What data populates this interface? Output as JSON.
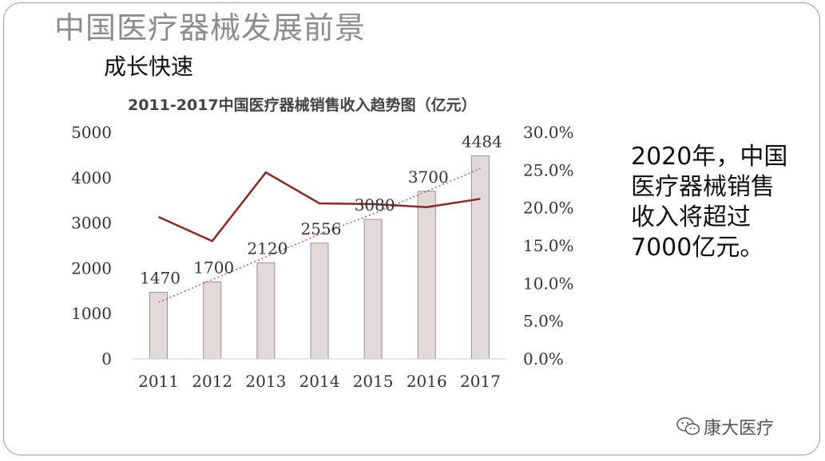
{
  "slide": {
    "title": "中国医疗器械发展前景",
    "subtitle": "成长快速",
    "callout": "2020年，中国\n医疗器械销售\n收入将超过\n7000亿元。",
    "logo_text": "康大医疗",
    "logo_icon": "wechat-icon"
  },
  "chart_data": {
    "type": "bar",
    "title": "2011-2017中国医疗器械销售收入趋势图（亿元）",
    "categories": [
      "2011",
      "2012",
      "2013",
      "2014",
      "2015",
      "2016",
      "2017"
    ],
    "series": [
      {
        "values": [
          1470,
          1700,
          2120,
          2556,
          3080,
          3700,
          4484
        ],
        "data_labels": [
          "1470",
          "1700",
          "2120",
          "2556",
          "3080",
          "3700",
          "4484"
        ],
        "axis": "left",
        "color": "#e2d9d9"
      },
      {
        "type": "line",
        "values": [
          18.8,
          15.6,
          24.7,
          20.6,
          20.5,
          20.1,
          21.2
        ],
        "axis": "right",
        "color": "#8b2a25"
      },
      {
        "type": "trendline",
        "style": "dotted",
        "color": "#b05a55",
        "values": [
          1250,
          1750,
          2250,
          2750,
          3200,
          3700,
          4200
        ]
      }
    ],
    "ylim": [
      0,
      5000
    ],
    "yticks": [
      "0",
      "1000",
      "2000",
      "3000",
      "4000",
      "5000"
    ],
    "y2lim": [
      0,
      30
    ],
    "y2ticks": [
      "0.0%",
      "5.0%",
      "10.0%",
      "15.0%",
      "20.0%",
      "25.0%",
      "30.0%"
    ],
    "grid": false,
    "legend": "none"
  }
}
